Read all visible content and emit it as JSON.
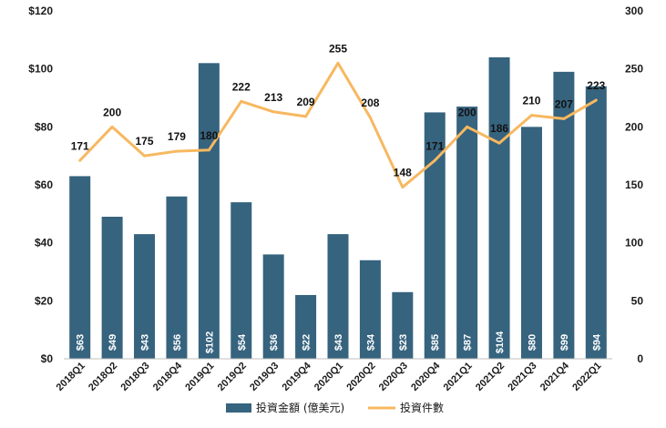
{
  "chart_data": {
    "type": "bar",
    "categories": [
      "2018Q1",
      "2018Q2",
      "2018Q3",
      "2018Q4",
      "2019Q1",
      "2019Q2",
      "2019Q3",
      "2019Q4",
      "2020Q1",
      "2020Q2",
      "2020Q3",
      "2020Q4",
      "2021Q1",
      "2021Q2",
      "2021Q3",
      "2021Q4",
      "2022Q1"
    ],
    "series": [
      {
        "name": "投資金額 (億美元)",
        "type": "bar",
        "axis": "left",
        "color": "#36637E",
        "values": [
          63,
          49,
          43,
          56,
          102,
          54,
          36,
          22,
          43,
          34,
          23,
          85,
          87,
          104,
          80,
          99,
          94
        ],
        "labels": [
          "$63",
          "$49",
          "$43",
          "$56",
          "$102",
          "$54",
          "$36",
          "$22",
          "$43",
          "$34",
          "$23",
          "$85",
          "$87",
          "$104",
          "$80",
          "$99",
          "$94"
        ]
      },
      {
        "name": "投資件數",
        "type": "line",
        "axis": "right",
        "color": "#F7B860",
        "values": [
          171,
          200,
          175,
          179,
          180,
          222,
          213,
          209,
          255,
          208,
          148,
          171,
          200,
          186,
          210,
          207,
          223
        ],
        "labels": [
          "171",
          "200",
          "175",
          "179",
          "180",
          "222",
          "213",
          "209",
          "255",
          "208",
          "148",
          "171",
          "200",
          "186",
          "210",
          "207",
          "223"
        ]
      }
    ],
    "left_axis": {
      "min": 0,
      "max": 120,
      "step": 20,
      "tick_labels": [
        "$0",
        "$20",
        "$40",
        "$60",
        "$80",
        "$100",
        "$120"
      ]
    },
    "right_axis": {
      "min": 0,
      "max": 300,
      "step": 50,
      "tick_labels": [
        "0",
        "50",
        "100",
        "150",
        "200",
        "250",
        "300"
      ]
    },
    "grid": false,
    "legend_position": "bottom"
  }
}
